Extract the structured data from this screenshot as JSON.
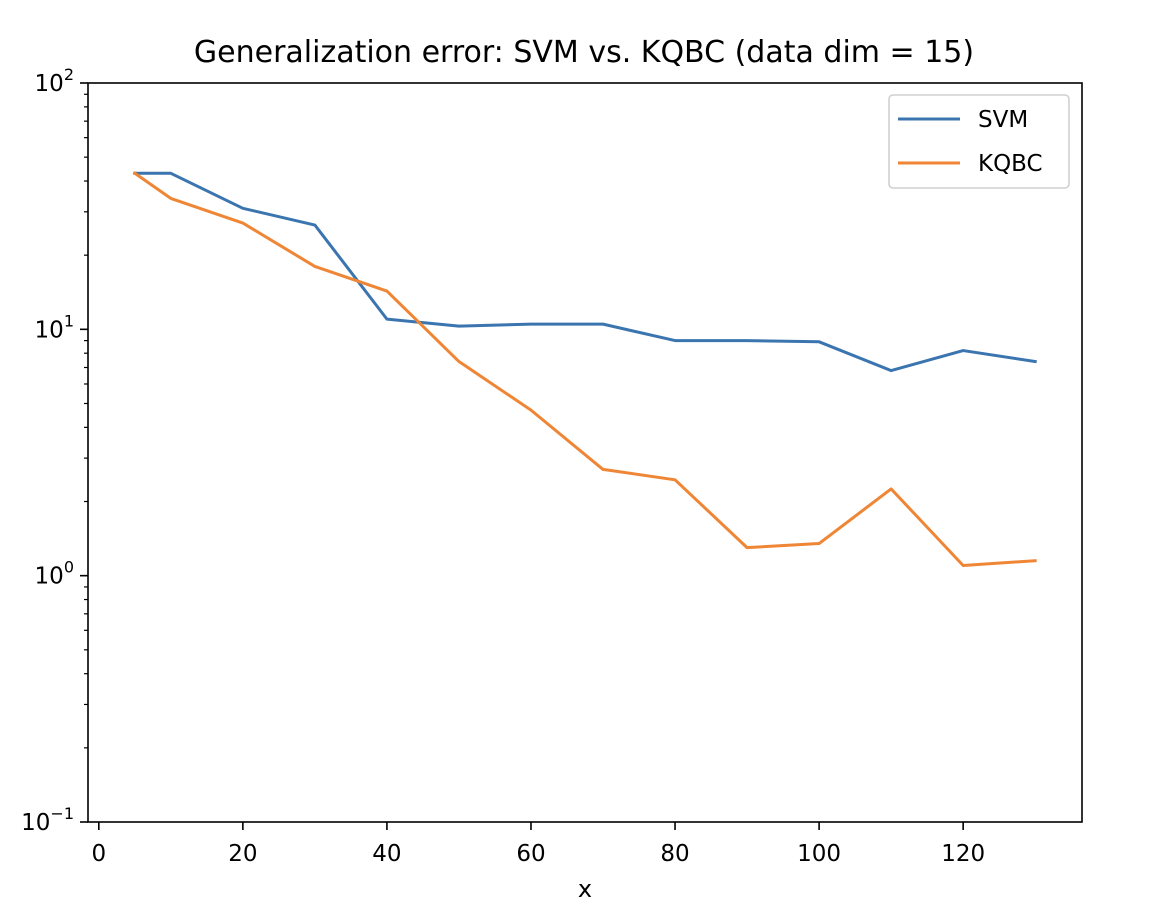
{
  "chart_data": {
    "type": "line",
    "title": "Generalization error: SVM vs. KQBC (data dim = 15)",
    "xlabel": "x",
    "ylabel": "",
    "xlim": [
      -1.5,
      136.5
    ],
    "ylim": [
      0.1,
      100
    ],
    "yscale": "log",
    "grid": false,
    "legend_position": "top-right",
    "x_ticks": [
      0,
      20,
      40,
      60,
      80,
      100,
      120
    ],
    "x_tick_labels": [
      "0",
      "20",
      "40",
      "60",
      "80",
      "100",
      "120"
    ],
    "y_ticks": [
      {
        "value": 0.1,
        "base": "10",
        "exponent": "−1"
      },
      {
        "value": 1,
        "base": "10",
        "exponent": "0"
      },
      {
        "value": 10,
        "base": "10",
        "exponent": "1"
      },
      {
        "value": 100,
        "base": "10",
        "exponent": "2"
      }
    ],
    "x": [
      5,
      10,
      20,
      30,
      40,
      50,
      60,
      70,
      80,
      90,
      100,
      110,
      120,
      130
    ],
    "series": [
      {
        "name": "SVM",
        "color": "#3b75af",
        "values": [
          43,
          43,
          31,
          26.5,
          11,
          10.3,
          10.5,
          10.5,
          9,
          9,
          8.9,
          6.8,
          8.2,
          7.4
        ]
      },
      {
        "name": "KQBC",
        "color": "#ef8636",
        "values": [
          43,
          34,
          27,
          18,
          14.3,
          7.4,
          4.7,
          2.7,
          2.45,
          1.3,
          1.35,
          2.25,
          1.1,
          1.15
        ]
      }
    ]
  }
}
